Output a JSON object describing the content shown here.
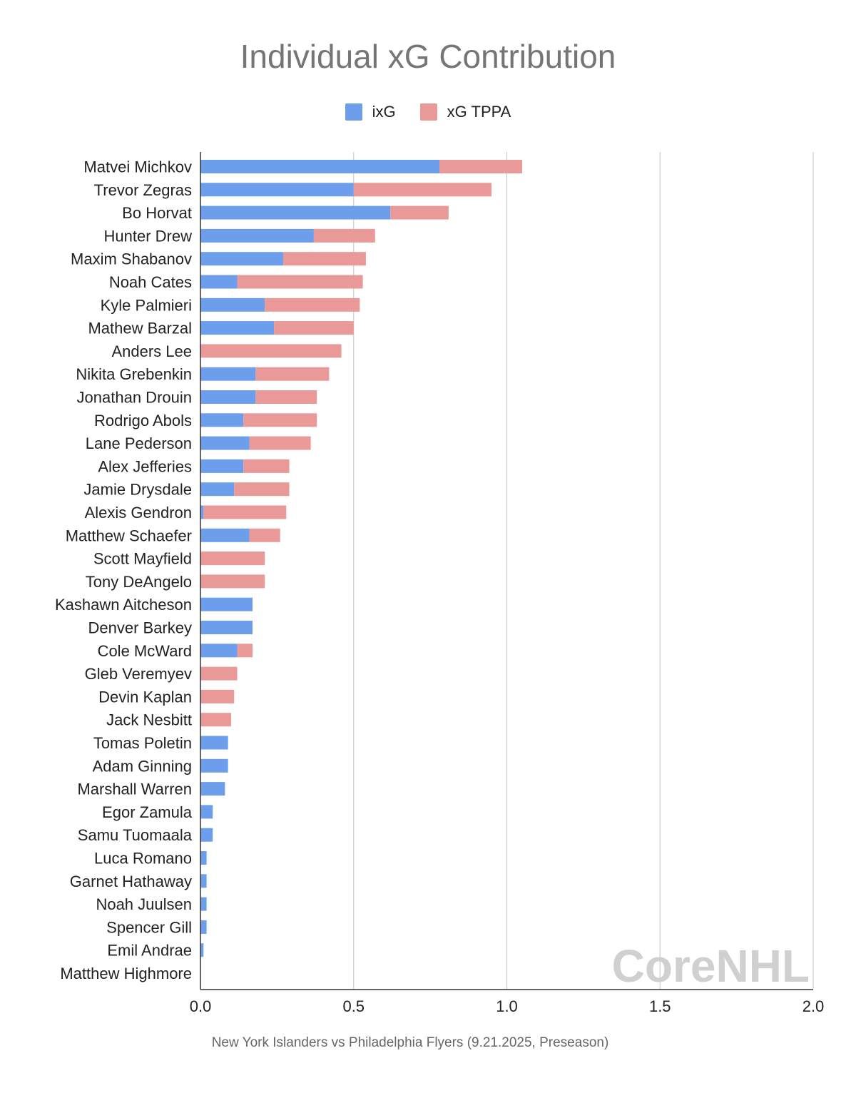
{
  "chart_data": {
    "type": "bar",
    "orientation": "horizontal",
    "stacked": true,
    "title": "Individual xG Contribution",
    "subtitle": "New York Islanders vs Philadelphia Flyers (9.21.2025, Preseason)",
    "watermark": "CoreNHL",
    "xlim": [
      0,
      2.0
    ],
    "xticks": [
      "0.0",
      "0.5",
      "1.0",
      "1.5",
      "2.0"
    ],
    "xtick_values": [
      0,
      0.5,
      1.0,
      1.5,
      2.0
    ],
    "grid": true,
    "legend_position": "top",
    "categories": [
      "Matvei Michkov",
      "Trevor Zegras",
      "Bo Horvat",
      "Hunter Drew",
      "Maxim Shabanov",
      "Noah Cates",
      "Kyle Palmieri",
      "Mathew Barzal",
      "Anders Lee",
      "Nikita Grebenkin",
      "Jonathan Drouin",
      "Rodrigo Abols",
      "Lane Pederson",
      "Alex Jefferies",
      "Jamie Drysdale",
      "Alexis Gendron",
      "Matthew Schaefer",
      "Scott Mayfield",
      "Tony DeAngelo",
      "Kashawn Aitcheson",
      "Denver Barkey",
      "Cole McWard",
      "Gleb Veremyev",
      "Devin Kaplan",
      "Jack Nesbitt",
      "Tomas Poletin",
      "Adam Ginning",
      "Marshall Warren",
      "Egor Zamula",
      "Samu Tuomaala",
      "Luca Romano",
      "Garnet Hathaway",
      "Noah Juulsen",
      "Spencer Gill",
      "Emil Andrae",
      "Matthew Highmore"
    ],
    "series": [
      {
        "name": "ixG",
        "color": "#6d9eeb",
        "values": [
          0.78,
          0.5,
          0.62,
          0.37,
          0.27,
          0.12,
          0.21,
          0.24,
          0.0,
          0.18,
          0.18,
          0.14,
          0.16,
          0.14,
          0.11,
          0.01,
          0.16,
          0.0,
          0.0,
          0.17,
          0.17,
          0.12,
          0.0,
          0.0,
          0.0,
          0.09,
          0.09,
          0.08,
          0.04,
          0.04,
          0.02,
          0.02,
          0.02,
          0.02,
          0.01,
          0.0
        ]
      },
      {
        "name": "xG TPPA",
        "color": "#ea9999",
        "values": [
          0.27,
          0.45,
          0.19,
          0.2,
          0.27,
          0.41,
          0.31,
          0.26,
          0.46,
          0.24,
          0.2,
          0.24,
          0.2,
          0.15,
          0.18,
          0.27,
          0.1,
          0.21,
          0.21,
          0.0,
          0.0,
          0.05,
          0.12,
          0.11,
          0.1,
          0.0,
          0.0,
          0.0,
          0.0,
          0.0,
          0.0,
          0.0,
          0.0,
          0.0,
          0.0,
          0.0
        ]
      }
    ]
  }
}
